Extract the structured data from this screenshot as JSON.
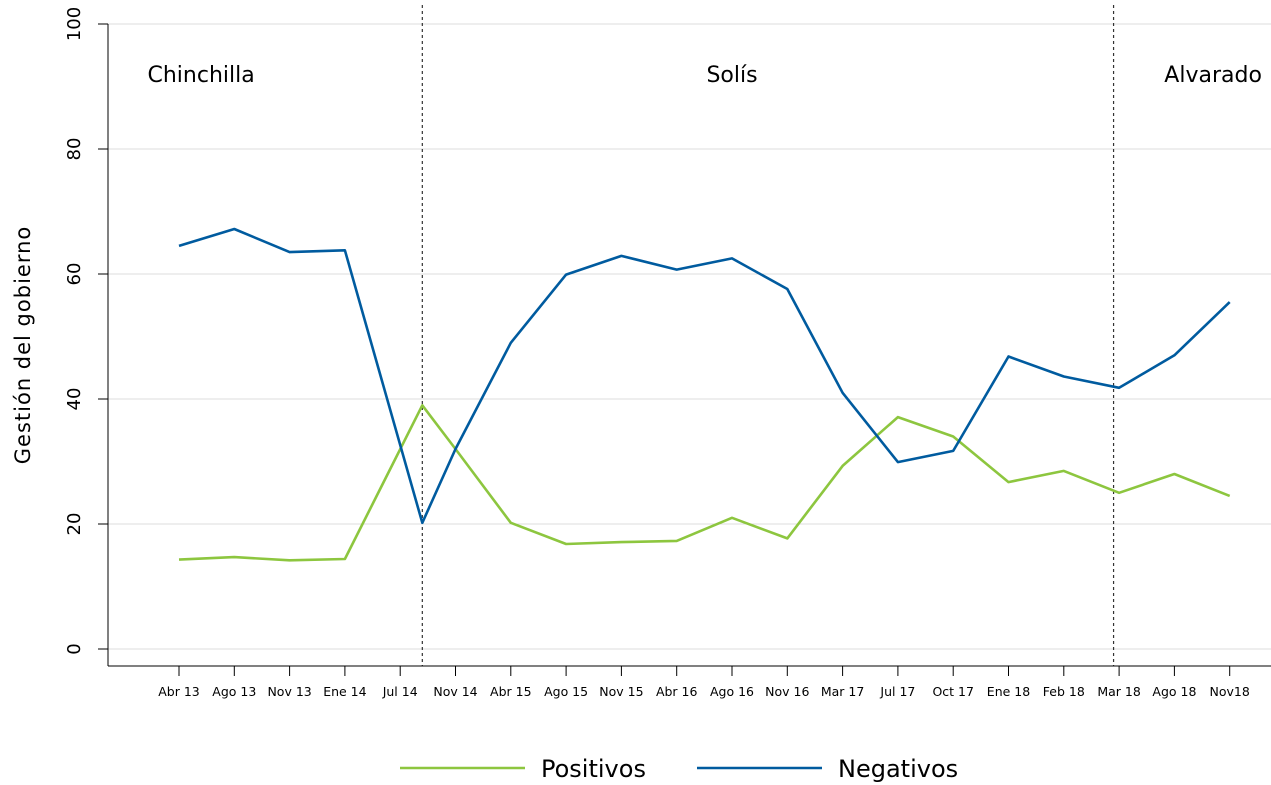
{
  "chart_data": {
    "type": "line",
    "title": "",
    "xlabel": "",
    "ylabel": "Gestión del gobierno",
    "ylim": [
      0,
      100
    ],
    "yticks": [
      0,
      20,
      40,
      60,
      80,
      100
    ],
    "grid": true,
    "legend_position": "bottom",
    "categories": [
      "Abr 13",
      "Ago 13",
      "Nov 13",
      "Ene 14",
      "Jul 14",
      "Nov 14",
      "Abr 15",
      "Ago 15",
      "Nov 15",
      "Abr 16",
      "Ago 16",
      "Nov 16",
      "Mar 17",
      "Jul 17",
      "Oct 17",
      "Ene 18",
      "Feb 18",
      "Mar 18",
      "Ago 18",
      "Nov18"
    ],
    "series": [
      {
        "name": "Positivos",
        "color": "#8dc63f",
        "points": [
          {
            "x": 0,
            "y": 14.3
          },
          {
            "x": 1,
            "y": 14.7
          },
          {
            "x": 2,
            "y": 14.2
          },
          {
            "x": 3,
            "y": 14.4
          },
          {
            "x": 4.4,
            "y": 39.0
          },
          {
            "x": 5,
            "y": 32.0
          },
          {
            "x": 6,
            "y": 20.2
          },
          {
            "x": 7,
            "y": 16.8
          },
          {
            "x": 8,
            "y": 17.1
          },
          {
            "x": 9,
            "y": 17.3
          },
          {
            "x": 10,
            "y": 21.0
          },
          {
            "x": 11,
            "y": 17.7
          },
          {
            "x": 12,
            "y": 29.3
          },
          {
            "x": 13,
            "y": 37.1
          },
          {
            "x": 14,
            "y": 34.0
          },
          {
            "x": 15,
            "y": 26.7
          },
          {
            "x": 16,
            "y": 28.5
          },
          {
            "x": 17,
            "y": 25.0
          },
          {
            "x": 18,
            "y": 28.0
          },
          {
            "x": 19,
            "y": 24.5
          }
        ]
      },
      {
        "name": "Negativos",
        "color": "#005b9f",
        "points": [
          {
            "x": 0,
            "y": 64.5
          },
          {
            "x": 1,
            "y": 67.2
          },
          {
            "x": 2,
            "y": 63.5
          },
          {
            "x": 3,
            "y": 63.8
          },
          {
            "x": 4.4,
            "y": 20.2
          },
          {
            "x": 5,
            "y": 32.0
          },
          {
            "x": 6,
            "y": 49.0
          },
          {
            "x": 7,
            "y": 59.9
          },
          {
            "x": 8,
            "y": 62.9
          },
          {
            "x": 9,
            "y": 60.7
          },
          {
            "x": 10,
            "y": 62.5
          },
          {
            "x": 11,
            "y": 57.6
          },
          {
            "x": 12,
            "y": 41.0
          },
          {
            "x": 13,
            "y": 29.9
          },
          {
            "x": 14,
            "y": 31.7
          },
          {
            "x": 15,
            "y": 46.8
          },
          {
            "x": 16,
            "y": 43.6
          },
          {
            "x": 17,
            "y": 41.8
          },
          {
            "x": 18,
            "y": 47.0
          },
          {
            "x": 19,
            "y": 55.5
          }
        ]
      }
    ],
    "vlines": [
      {
        "x": 4.4,
        "style": "dotted"
      },
      {
        "x": 16.9,
        "style": "dotted"
      }
    ],
    "annotations": [
      {
        "text": "Chinchilla",
        "x": 0.4,
        "y": 92
      },
      {
        "text": "Solís",
        "x": 10,
        "y": 92
      },
      {
        "text": "Alvarado",
        "x": 18.7,
        "y": 92
      }
    ]
  }
}
